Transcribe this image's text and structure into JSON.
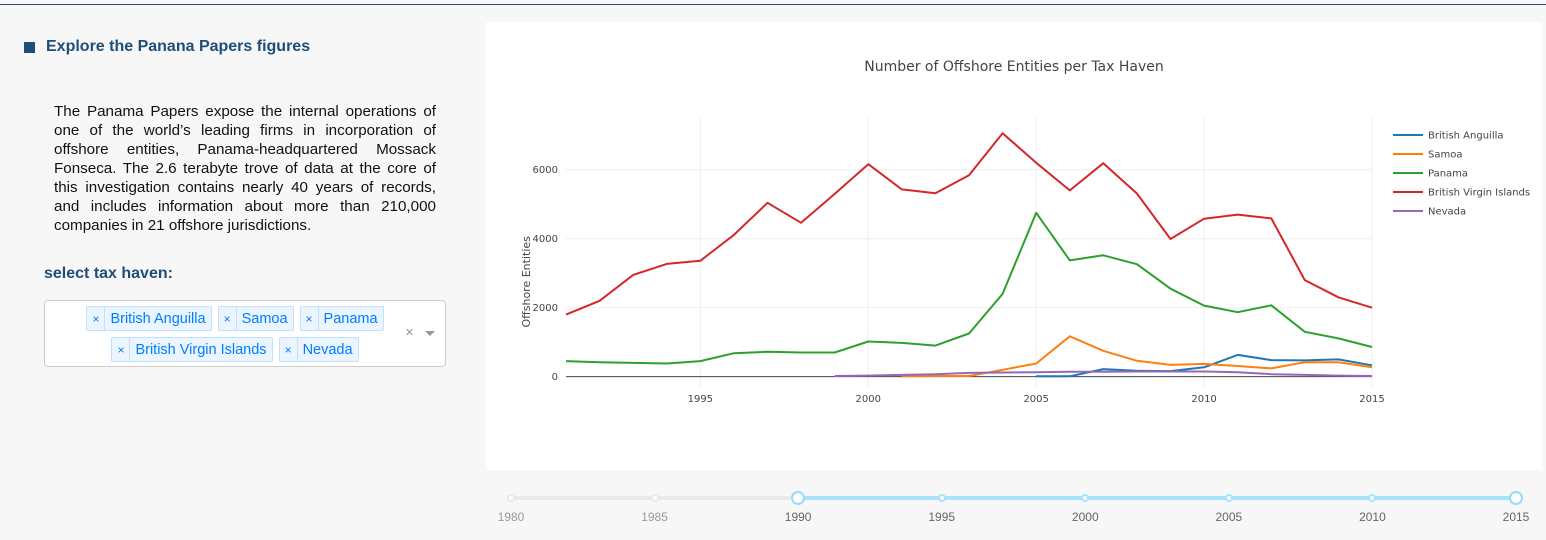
{
  "left_panel": {
    "title": "Explore the Panana Papers figures",
    "intro": "The Panama Papers expose the internal operations of one of the world’s leading firms in incorporation of offshore entities, Panama-headquartered Mossack Fonseca. The 2.6 terabyte trove of data at the core of this investigation contains nearly 40 years of records, and includes information about more than 210,000 companies in 21 offshore jurisdictions.",
    "select_label": "select tax haven:",
    "selected": [
      "British Anguilla",
      "Samoa",
      "Panama",
      "British Virgin Islands",
      "Nevada"
    ],
    "remove_glyph": "×",
    "clear_glyph": "×"
  },
  "slider": {
    "min": 1980,
    "max": 2015,
    "value": [
      1990,
      2015
    ],
    "marks": [
      "1980",
      "1985",
      "1990",
      "1995",
      "2000",
      "2005",
      "2010",
      "2015"
    ]
  },
  "chart_data": {
    "type": "line",
    "title": "Number of Offshore Entities per Tax Haven",
    "xlabel": "",
    "ylabel": "Offshore Entities",
    "xlim": [
      1991,
      2015
    ],
    "ylim": [
      -300,
      7500
    ],
    "xticks": [
      1995,
      2000,
      2005,
      2010,
      2015
    ],
    "yticks": [
      0,
      2000,
      4000,
      6000
    ],
    "grid": true,
    "legend": "top-right",
    "series": [
      {
        "name": "British Anguilla",
        "color": "#1f77b4",
        "x": [
          2005,
          2006,
          2007,
          2008,
          2009,
          2010,
          2011,
          2012,
          2013,
          2014,
          2015
        ],
        "y": [
          10,
          10,
          220,
          170,
          160,
          270,
          630,
          480,
          470,
          500,
          330
        ]
      },
      {
        "name": "Samoa",
        "color": "#ff7f0e",
        "x": [
          2001,
          2002,
          2003,
          2004,
          2005,
          2006,
          2007,
          2008,
          2009,
          2010,
          2011,
          2012,
          2013,
          2014,
          2015
        ],
        "y": [
          10,
          20,
          20,
          200,
          380,
          1170,
          750,
          460,
          340,
          370,
          310,
          240,
          420,
          420,
          270
        ]
      },
      {
        "name": "Panama",
        "color": "#2ca02c",
        "x": [
          1991,
          1992,
          1993,
          1994,
          1995,
          1996,
          1997,
          1998,
          1999,
          2000,
          2001,
          2002,
          2003,
          2004,
          2005,
          2006,
          2007,
          2008,
          2009,
          2010,
          2011,
          2012,
          2013,
          2014,
          2015
        ],
        "y": [
          450,
          420,
          400,
          380,
          450,
          680,
          720,
          700,
          700,
          1020,
          980,
          900,
          1250,
          2400,
          4750,
          3370,
          3520,
          3260,
          2550,
          2060,
          1870,
          2070,
          1300,
          1110,
          860
        ]
      },
      {
        "name": "British Virgin Islands",
        "color": "#d62728",
        "x": [
          1991,
          1992,
          1993,
          1994,
          1995,
          1996,
          1997,
          1998,
          1999,
          2000,
          2001,
          2002,
          2003,
          2004,
          2005,
          2006,
          2007,
          2008,
          2009,
          2010,
          2011,
          2012,
          2013,
          2014,
          2015
        ],
        "y": [
          1800,
          2200,
          2950,
          3270,
          3360,
          4110,
          5040,
          4460,
          5300,
          6160,
          5430,
          5320,
          5840,
          7060,
          6200,
          5400,
          6190,
          5310,
          3990,
          4580,
          4700,
          4590,
          2800,
          2300,
          2000
        ]
      },
      {
        "name": "Nevada",
        "color": "#9467bd",
        "x": [
          1999,
          2000,
          2001,
          2002,
          2003,
          2004,
          2005,
          2006,
          2007,
          2008,
          2009,
          2010,
          2011,
          2012,
          2013,
          2014,
          2015
        ],
        "y": [
          20,
          30,
          50,
          70,
          110,
          120,
          130,
          140,
          140,
          150,
          150,
          150,
          130,
          70,
          50,
          30,
          20
        ]
      }
    ]
  }
}
